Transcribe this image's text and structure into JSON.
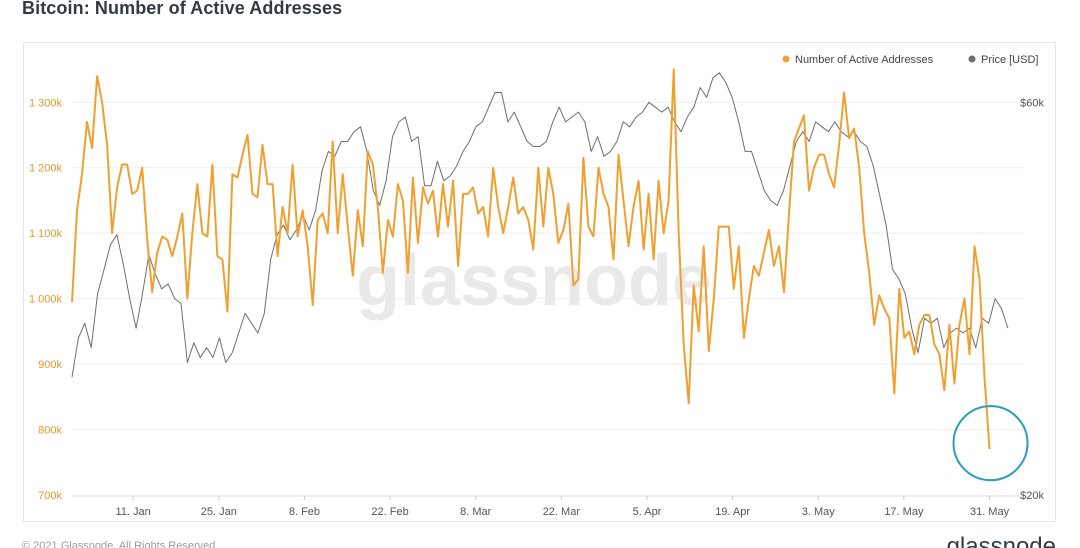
{
  "title": "Bitcoin: Number of Active Addresses",
  "footer": {
    "copyright": "© 2021 Glassnode. All Rights Reserved.",
    "brand": "glassnode"
  },
  "watermark": "glassnode",
  "chart_data": {
    "type": "line",
    "title": "Bitcoin: Number of Active Addresses",
    "legend_position": "top-right",
    "grid": true,
    "x_tick_labels": [
      "11. Jan",
      "25. Jan",
      "8. Feb",
      "22. Feb",
      "8. Mar",
      "22. Mar",
      "5. Apr",
      "19. Apr",
      "3. May",
      "17. May",
      "31. May"
    ],
    "x_range_days": [
      0,
      154
    ],
    "x_tick_days": [
      10,
      24,
      38,
      52,
      66,
      80,
      94,
      108,
      122,
      136,
      150
    ],
    "left_axis": {
      "tick_labels": [
        "700k",
        "800k",
        "900k",
        "1 000k",
        "1 100k",
        "1 200k",
        "1 300k"
      ],
      "tick_values": [
        700000,
        800000,
        900000,
        1000000,
        1100000,
        1200000,
        1300000
      ],
      "range": [
        700000,
        1360000
      ]
    },
    "right_axis": {
      "tick_labels": [
        "$20k",
        "$60k"
      ],
      "tick_values": [
        20000,
        60000
      ],
      "range": [
        20000,
        64000
      ]
    },
    "series": [
      {
        "name": "Number of Active Addresses",
        "color": "#f0a030",
        "axis": "left",
        "values": [
          995000,
          1135000,
          1190000,
          1270000,
          1230000,
          1340000,
          1300000,
          1235000,
          1100000,
          1170000,
          1205000,
          1205000,
          1160000,
          1165000,
          1200000,
          1090000,
          1010000,
          1070000,
          1095000,
          1090000,
          1065000,
          1095000,
          1130000,
          1000000,
          1100000,
          1175000,
          1100000,
          1095000,
          1205000,
          1065000,
          1060000,
          980000,
          1190000,
          1185000,
          1220000,
          1250000,
          1160000,
          1155000,
          1235000,
          1175000,
          1175000,
          1065000,
          1140000,
          1100000,
          1205000,
          1095000,
          1135000,
          1080000,
          990000,
          1120000,
          1130000,
          1100000,
          1240000,
          1100000,
          1190000,
          1110000,
          1035000,
          1135000,
          1080000,
          1225000,
          1205000,
          1140000,
          1040000,
          1120000,
          1095000,
          1175000,
          1150000,
          1040000,
          1185000,
          1085000,
          1170000,
          1145000,
          1165000,
          1095000,
          1175000,
          1110000,
          1180000,
          1050000,
          1160000,
          1160000,
          1170000,
          1130000,
          1140000,
          1095000,
          1200000,
          1140000,
          1100000,
          1140000,
          1185000,
          1130000,
          1140000,
          1120000,
          1075000,
          1200000,
          1110000,
          1200000,
          1160000,
          1085000,
          1105000,
          1145000,
          1020000,
          1030000,
          1215000,
          1110000,
          1095000,
          1200000,
          1160000,
          1140000,
          1060000,
          1220000,
          1150000,
          1080000,
          1140000,
          1180000,
          1075000,
          1160000,
          1060000,
          1180000,
          1100000,
          1150000,
          1350000,
          1100000,
          930000,
          840000,
          1020000,
          950000,
          1080000,
          920000,
          1000000,
          1110000,
          1110000,
          1110000,
          1015000,
          1080000,
          940000,
          1000000,
          1050000,
          1035000,
          1070000,
          1105000,
          1050000,
          1080000,
          1010000,
          1130000,
          1240000,
          1260000,
          1280000,
          1165000,
          1200000,
          1220000,
          1220000,
          1190000,
          1170000,
          1235000,
          1315000,
          1245000,
          1260000,
          1200000,
          1100000,
          1040000,
          960000,
          1005000,
          985000,
          970000,
          855000,
          1015000,
          940000,
          950000,
          915000,
          960000,
          975000,
          975000,
          930000,
          915000,
          860000,
          960000,
          870000,
          960000,
          1000000,
          915000,
          1080000,
          1030000,
          880000,
          770000
        ],
        "last_value_label": "770k"
      },
      {
        "name": "Price [USD]",
        "color": "#6e6e6e",
        "axis": "right",
        "values": [
          32000,
          36000,
          37500,
          35000,
          40500,
          43000,
          45500,
          46500,
          43500,
          40000,
          37000,
          40500,
          44500,
          42500,
          41000,
          41500,
          40000,
          39500,
          33500,
          35500,
          34000,
          35000,
          34000,
          36000,
          33500,
          34500,
          36500,
          38500,
          37500,
          36500,
          38500,
          44000,
          46500,
          47500,
          46000,
          47000,
          48500,
          47000,
          49000,
          53000,
          55000,
          54500,
          56000,
          56000,
          57000,
          57500,
          55000,
          51000,
          49500,
          52000,
          56500,
          58000,
          58500,
          56000,
          56500,
          51500,
          51500,
          54000,
          52000,
          52500,
          53500,
          55000,
          56000,
          57500,
          58000,
          59500,
          61000,
          61000,
          58000,
          59000,
          57500,
          56000,
          55500,
          55500,
          56000,
          58000,
          59500,
          58000,
          58500,
          59000,
          58000,
          55000,
          56500,
          54500,
          55000,
          56000,
          58000,
          57500,
          58500,
          59000,
          60000,
          59500,
          59000,
          59500,
          58000,
          57000,
          58500,
          59500,
          61500,
          60500,
          62500,
          63000,
          62000,
          60500,
          58000,
          55000,
          55000,
          53000,
          51000,
          50000,
          49500,
          51000,
          53500,
          56000,
          57000,
          56000,
          58000,
          57500,
          57000,
          58000,
          57000,
          56500,
          57000,
          56000,
          55500,
          53500,
          50500,
          47500,
          43000,
          42000,
          40500,
          37000,
          34500,
          38000,
          37500,
          38000,
          35000,
          36500,
          37000,
          36500,
          37000,
          35000,
          38000,
          37500,
          40000,
          39000,
          37000
        ]
      }
    ],
    "annotations": [
      {
        "type": "circle",
        "label": "",
        "at_series": "Number of Active Addresses",
        "at": "last point"
      }
    ]
  }
}
